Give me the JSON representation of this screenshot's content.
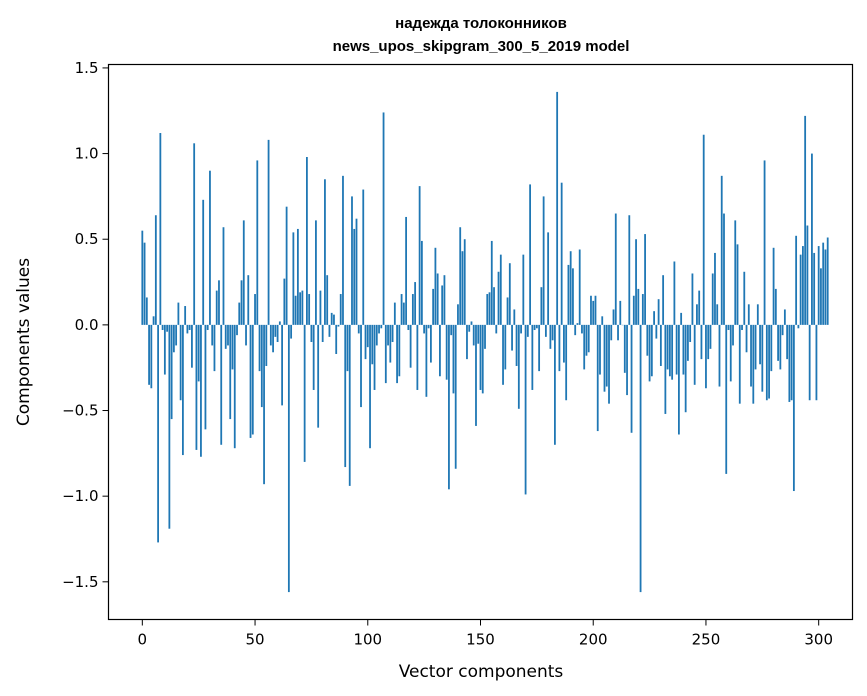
{
  "chart_data": {
    "type": "bar",
    "title": "надежда толоконников",
    "subtitle": "news_upos_skipgram_300_5_2019 model",
    "xlabel": "Vector components",
    "ylabel": "Components values",
    "xlim": [
      -15,
      315
    ],
    "ylim": [
      -1.72,
      1.52
    ],
    "xticks": [
      0,
      50,
      100,
      150,
      200,
      250,
      300
    ],
    "yticks": [
      -1.5,
      -1.0,
      -0.5,
      0.0,
      0.5,
      1.0,
      1.5
    ],
    "xtick_labels": [
      "0",
      "50",
      "100",
      "150",
      "200",
      "250",
      "300"
    ],
    "ytick_labels": [
      "−1.5",
      "−1.0",
      "−0.5",
      "0.0",
      "0.5",
      "1.0",
      "1.5"
    ],
    "bar_color": "#1f77b4",
    "values": [
      0.55,
      0.48,
      0.16,
      -0.35,
      -0.37,
      0.05,
      0.64,
      -1.27,
      1.12,
      -0.03,
      -0.29,
      -0.04,
      -1.19,
      -0.55,
      -0.16,
      -0.12,
      0.13,
      -0.44,
      -0.76,
      0.11,
      -0.05,
      -0.03,
      -0.25,
      1.06,
      -0.73,
      -0.33,
      -0.77,
      0.73,
      -0.61,
      -0.03,
      0.9,
      -0.12,
      -0.27,
      0.2,
      0.26,
      -0.7,
      0.57,
      -0.14,
      -0.12,
      -0.55,
      -0.26,
      -0.72,
      -0.06,
      0.13,
      0.26,
      0.61,
      -0.12,
      0.29,
      -0.66,
      -0.64,
      0.18,
      0.96,
      -0.27,
      -0.48,
      -0.93,
      -0.24,
      1.08,
      -0.12,
      -0.16,
      -0.07,
      -0.1,
      0.02,
      -0.47,
      0.27,
      0.69,
      -1.56,
      -0.08,
      0.54,
      0.17,
      0.56,
      0.19,
      0.2,
      -0.8,
      0.98,
      0.18,
      -0.1,
      -0.38,
      0.61,
      -0.6,
      0.2,
      -0.1,
      0.85,
      0.29,
      -0.07,
      0.07,
      0.06,
      -0.17,
      -0.01,
      0.18,
      0.87,
      -0.83,
      -0.27,
      -0.94,
      0.75,
      0.56,
      0.62,
      -0.05,
      -0.48,
      0.79,
      -0.2,
      -0.13,
      -0.72,
      -0.23,
      -0.38,
      -0.12,
      -0.05,
      -0.02,
      1.24,
      -0.34,
      -0.12,
      -0.22,
      -0.1,
      0.13,
      -0.34,
      -0.3,
      0.18,
      0.13,
      0.63,
      -0.03,
      -0.25,
      0.18,
      0.25,
      -0.38,
      0.81,
      0.49,
      -0.05,
      -0.42,
      -0.02,
      -0.22,
      0.21,
      0.45,
      0.3,
      -0.3,
      0.23,
      0.29,
      -0.32,
      -0.96,
      -0.06,
      -0.4,
      -0.84,
      0.12,
      0.57,
      0.43,
      0.5,
      -0.2,
      -0.04,
      0.02,
      -0.12,
      -0.59,
      -0.11,
      -0.38,
      -0.4,
      -0.14,
      0.18,
      0.19,
      0.49,
      0.22,
      -0.05,
      0.31,
      0.41,
      -0.35,
      -0.26,
      0.16,
      0.36,
      -0.15,
      0.09,
      -0.24,
      -0.49,
      -0.05,
      0.41,
      -0.99,
      -0.07,
      0.82,
      -0.38,
      -0.03,
      -0.02,
      -0.27,
      0.22,
      0.75,
      -0.07,
      0.54,
      -0.14,
      -0.09,
      -0.7,
      1.36,
      -0.27,
      0.83,
      -0.22,
      -0.44,
      0.35,
      0.43,
      0.33,
      -0.06,
      0.01,
      0.44,
      -0.05,
      -0.26,
      -0.18,
      -0.16,
      0.17,
      0.14,
      0.17,
      -0.62,
      -0.29,
      0.05,
      -0.39,
      -0.36,
      -0.46,
      -0.09,
      0.09,
      0.65,
      -0.09,
      0.14,
      0.0,
      -0.28,
      -0.41,
      0.64,
      -0.63,
      0.17,
      0.5,
      0.21,
      -1.56,
      0.18,
      0.53,
      -0.18,
      -0.33,
      -0.3,
      0.08,
      -0.08,
      0.15,
      -0.24,
      0.29,
      -0.52,
      -0.26,
      -0.3,
      -0.32,
      0.37,
      -0.29,
      -0.64,
      0.07,
      -0.29,
      -0.51,
      -0.21,
      -0.1,
      0.3,
      -0.35,
      0.12,
      0.2,
      -0.2,
      1.11,
      -0.37,
      -0.2,
      -0.14,
      0.3,
      0.42,
      0.12,
      -0.36,
      0.87,
      0.65,
      -0.87,
      -0.03,
      -0.33,
      -0.12,
      0.61,
      0.47,
      -0.46,
      -0.03,
      0.31,
      -0.16,
      0.12,
      -0.36,
      -0.46,
      -0.26,
      0.12,
      -0.23,
      -0.39,
      0.96,
      -0.44,
      -0.43,
      -0.27,
      0.45,
      0.21,
      -0.21,
      -0.26,
      -0.06,
      0.09,
      -0.2,
      -0.45,
      -0.44,
      -0.97,
      0.52,
      -0.02,
      0.41,
      0.46,
      1.22,
      0.58,
      -0.44,
      1.0,
      0.42,
      -0.44,
      0.46,
      0.33,
      0.48,
      0.44,
      0.51
    ]
  }
}
